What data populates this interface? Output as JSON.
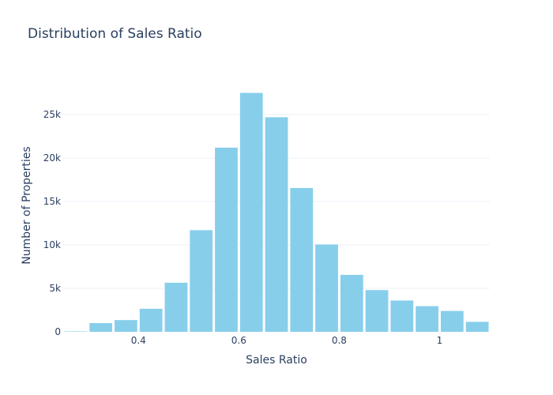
{
  "chart_data": {
    "type": "bar",
    "title": "Distribution of Sales Ratio",
    "xlabel": "Sales Ratio",
    "ylabel": "Number of Properties",
    "bin_width": 0.05,
    "x": [
      0.25,
      0.3,
      0.35,
      0.4,
      0.45,
      0.5,
      0.55,
      0.6,
      0.65,
      0.7,
      0.75,
      0.8,
      0.85,
      0.9,
      0.95,
      1.0,
      1.05
    ],
    "values": [
      50,
      1000,
      1350,
      2650,
      5650,
      11700,
      21200,
      27500,
      24700,
      16550,
      10050,
      6550,
      4800,
      3600,
      2950,
      2400,
      1150
    ],
    "xlim": [
      0.25,
      1.1
    ],
    "ylim": [
      0,
      29100
    ],
    "x_ticks": [
      0.4,
      0.6,
      0.8,
      1.0
    ],
    "x_tick_labels": [
      "0.4",
      "0.6",
      "0.8",
      "1"
    ],
    "y_ticks": [
      0,
      5000,
      10000,
      15000,
      20000,
      25000
    ],
    "y_tick_labels": [
      "0",
      "5k",
      "10k",
      "15k",
      "20k",
      "25k"
    ],
    "grid": true,
    "colors": {
      "bar": "#87ceeb",
      "grid": "#ebf0f8",
      "text": "#2a3f5f",
      "background": "#ffffff"
    }
  }
}
